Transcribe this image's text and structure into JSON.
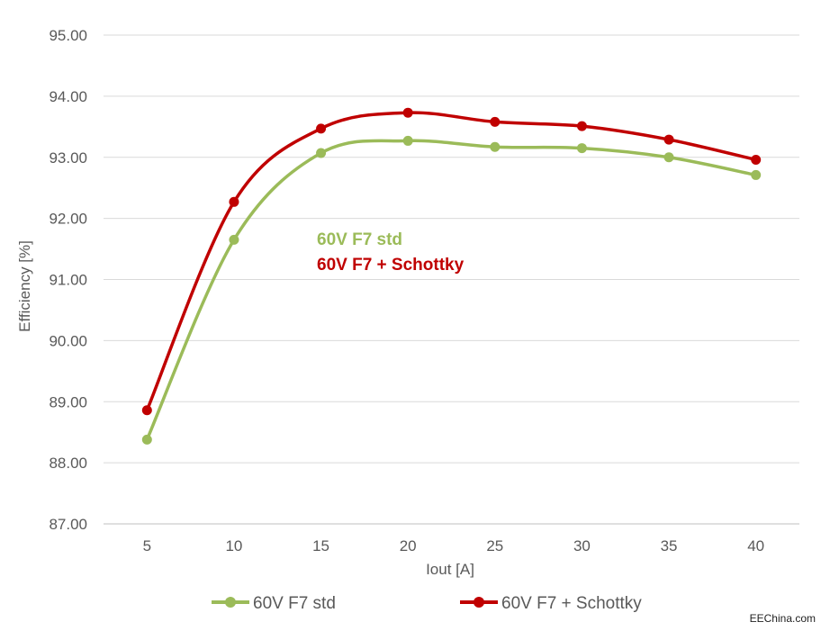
{
  "chart_data": {
    "type": "line",
    "x": [
      5,
      10,
      15,
      20,
      25,
      30,
      35,
      40
    ],
    "series": [
      {
        "name": "60V F7 std",
        "color": "#9bbb59",
        "values": [
          88.38,
          91.65,
          93.07,
          93.27,
          93.17,
          93.15,
          93.0,
          92.71
        ]
      },
      {
        "name": "60V F7 + Schottky",
        "color": "#c00000",
        "values": [
          88.86,
          92.27,
          93.47,
          93.73,
          93.58,
          93.51,
          93.29,
          92.96
        ]
      }
    ],
    "ylim": [
      87,
      95
    ],
    "yticks": [
      "87.00",
      "88.00",
      "89.00",
      "90.00",
      "91.00",
      "92.00",
      "93.00",
      "94.00",
      "95.00"
    ],
    "xticks": [
      "5",
      "10",
      "15",
      "20",
      "25",
      "30",
      "35",
      "40"
    ],
    "xlabel": "Iout [A]",
    "ylabel": "Efficiency [%]",
    "grid": true,
    "smooth": true,
    "legend_position": "bottom",
    "annotations": [
      {
        "text": "60V F7 std",
        "color": "#9bbb59"
      },
      {
        "text": "60V F7 + Schottky",
        "color": "#c00000"
      }
    ]
  },
  "watermark": "EEChina.com"
}
